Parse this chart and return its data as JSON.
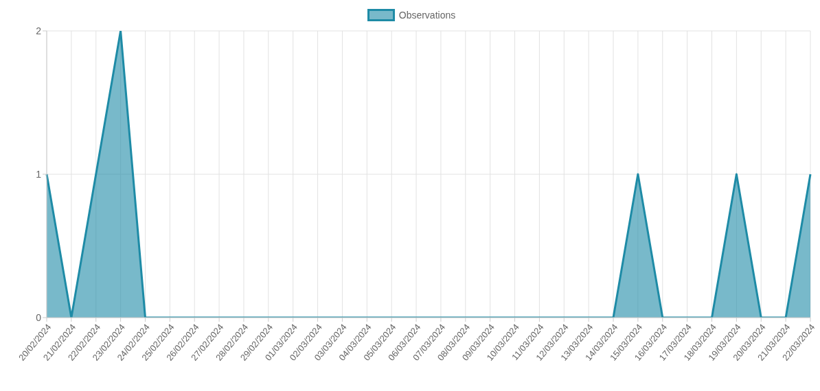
{
  "chart_data": {
    "type": "area",
    "categories": [
      "20/02/2024",
      "21/02/2024",
      "22/02/2024",
      "23/02/2024",
      "24/02/2024",
      "25/02/2024",
      "26/02/2024",
      "27/02/2024",
      "28/02/2024",
      "29/02/2024",
      "01/03/2024",
      "02/03/2024",
      "03/03/2024",
      "04/03/2024",
      "05/03/2024",
      "06/03/2024",
      "07/03/2024",
      "08/03/2024",
      "09/03/2024",
      "10/03/2024",
      "11/03/2024",
      "12/03/2024",
      "13/03/2024",
      "14/03/2024",
      "15/03/2024",
      "16/03/2024",
      "17/03/2024",
      "18/03/2024",
      "19/03/2024",
      "20/03/2024",
      "21/03/2024",
      "22/03/2024"
    ],
    "series": [
      {
        "name": "Observations",
        "color": "#1e8ba6",
        "values": [
          1,
          0,
          1,
          2,
          0,
          0,
          0,
          0,
          0,
          0,
          0,
          0,
          0,
          0,
          0,
          0,
          0,
          0,
          0,
          0,
          0,
          0,
          0,
          0,
          1,
          0,
          0,
          0,
          1,
          0,
          0,
          1
        ]
      }
    ],
    "ylim": [
      0,
      2
    ],
    "yticks": [
      0,
      1,
      2
    ],
    "grid": true,
    "legend": "top"
  }
}
